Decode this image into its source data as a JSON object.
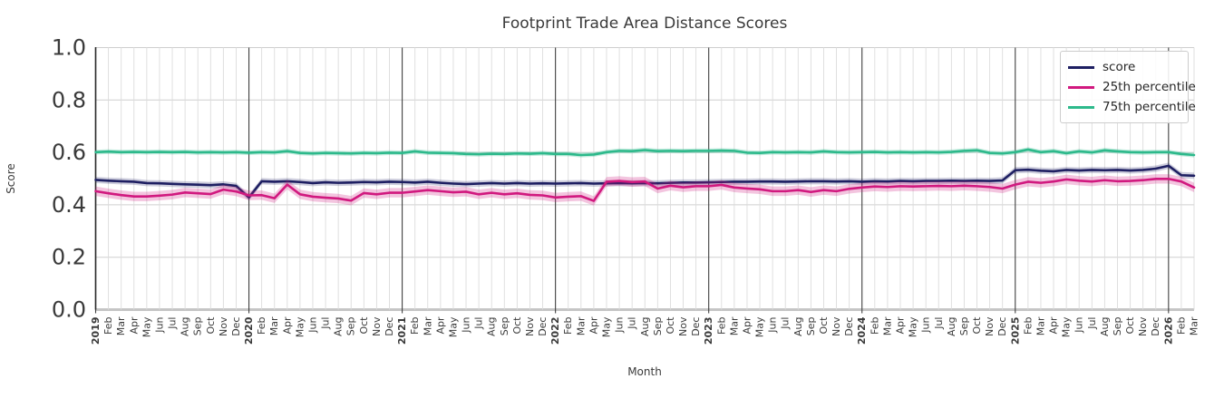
{
  "chart_data": {
    "type": "line",
    "title": "Footprint Trade Area Distance Scores",
    "xlabel": "Month",
    "ylabel": "Score",
    "ylim": [
      0.0,
      1.0
    ],
    "yticks": [
      0.0,
      0.2,
      0.4,
      0.6,
      0.8,
      1.0
    ],
    "grid": true,
    "legend_position": "upper right",
    "categories": [
      "2019",
      "Feb",
      "Mar",
      "Apr",
      "May",
      "Jun",
      "Jul",
      "Aug",
      "Sep",
      "Oct",
      "Nov",
      "Dec",
      "2020",
      "Feb",
      "Mar",
      "Apr",
      "May",
      "Jun",
      "Jul",
      "Aug",
      "Sep",
      "Oct",
      "Nov",
      "Dec",
      "2021",
      "Feb",
      "Mar",
      "Apr",
      "May",
      "Jun",
      "Jul",
      "Aug",
      "Sep",
      "Oct",
      "Nov",
      "Dec",
      "2022",
      "Feb",
      "Mar",
      "Apr",
      "May",
      "Jun",
      "Jul",
      "Aug",
      "Sep",
      "Oct",
      "Nov",
      "Dec",
      "2023",
      "Feb",
      "Mar",
      "Apr",
      "May",
      "Jun",
      "Jul",
      "Aug",
      "Sep",
      "Oct",
      "Nov",
      "Dec",
      "2024",
      "Feb",
      "Mar",
      "Apr",
      "May",
      "Jun",
      "Jul",
      "Aug",
      "Sep",
      "Oct",
      "Nov",
      "Dec",
      "2025",
      "Feb",
      "Mar",
      "Apr",
      "May",
      "Jun",
      "Jul",
      "Aug",
      "Sep",
      "Oct",
      "Nov",
      "Dec",
      "2026",
      "Feb",
      "Mar"
    ],
    "series": [
      {
        "name": "score",
        "color": "#1e1f62",
        "band_halfwidth": 0.012,
        "band_opacity": 0.22,
        "values": [
          0.495,
          0.492,
          0.49,
          0.488,
          0.483,
          0.482,
          0.48,
          0.478,
          0.477,
          0.475,
          0.478,
          0.472,
          0.428,
          0.49,
          0.488,
          0.49,
          0.487,
          0.483,
          0.486,
          0.484,
          0.485,
          0.487,
          0.486,
          0.488,
          0.487,
          0.485,
          0.488,
          0.484,
          0.481,
          0.479,
          0.481,
          0.483,
          0.481,
          0.483,
          0.481,
          0.482,
          0.481,
          0.482,
          0.483,
          0.481,
          0.482,
          0.483,
          0.482,
          0.483,
          0.482,
          0.484,
          0.485,
          0.485,
          0.486,
          0.487,
          0.488,
          0.488,
          0.489,
          0.489,
          0.488,
          0.489,
          0.49,
          0.49,
          0.489,
          0.49,
          0.488,
          0.49,
          0.489,
          0.491,
          0.49,
          0.491,
          0.491,
          0.492,
          0.491,
          0.492,
          0.491,
          0.493,
          0.532,
          0.534,
          0.53,
          0.528,
          0.533,
          0.531,
          0.533,
          0.532,
          0.533,
          0.531,
          0.533,
          0.538,
          0.549,
          0.513,
          0.511
        ]
      },
      {
        "name": "25th percentile",
        "color": "#d1197f",
        "band_halfwidth": 0.018,
        "band_opacity": 0.25,
        "values": [
          0.452,
          0.444,
          0.437,
          0.432,
          0.432,
          0.435,
          0.439,
          0.447,
          0.444,
          0.441,
          0.458,
          0.451,
          0.436,
          0.437,
          0.425,
          0.477,
          0.44,
          0.431,
          0.427,
          0.424,
          0.416,
          0.445,
          0.44,
          0.446,
          0.446,
          0.451,
          0.456,
          0.452,
          0.448,
          0.45,
          0.44,
          0.446,
          0.44,
          0.444,
          0.438,
          0.436,
          0.428,
          0.431,
          0.433,
          0.415,
          0.488,
          0.491,
          0.487,
          0.489,
          0.462,
          0.473,
          0.467,
          0.471,
          0.471,
          0.476,
          0.466,
          0.462,
          0.459,
          0.452,
          0.452,
          0.456,
          0.449,
          0.456,
          0.452,
          0.461,
          0.466,
          0.47,
          0.468,
          0.471,
          0.47,
          0.471,
          0.472,
          0.471,
          0.473,
          0.471,
          0.468,
          0.462,
          0.477,
          0.488,
          0.484,
          0.489,
          0.497,
          0.492,
          0.489,
          0.494,
          0.49,
          0.491,
          0.494,
          0.499,
          0.499,
          0.489,
          0.466
        ]
      },
      {
        "name": "75th percentile",
        "color": "#2db98b",
        "band_halfwidth": 0.009,
        "band_opacity": 0.28,
        "values": [
          0.601,
          0.603,
          0.601,
          0.602,
          0.601,
          0.602,
          0.601,
          0.602,
          0.6,
          0.601,
          0.6,
          0.601,
          0.599,
          0.601,
          0.6,
          0.605,
          0.598,
          0.596,
          0.598,
          0.597,
          0.596,
          0.598,
          0.597,
          0.599,
          0.598,
          0.604,
          0.599,
          0.598,
          0.597,
          0.594,
          0.593,
          0.595,
          0.594,
          0.596,
          0.595,
          0.597,
          0.594,
          0.594,
          0.59,
          0.592,
          0.601,
          0.606,
          0.605,
          0.609,
          0.605,
          0.606,
          0.605,
          0.606,
          0.606,
          0.607,
          0.606,
          0.599,
          0.598,
          0.601,
          0.6,
          0.601,
          0.6,
          0.604,
          0.601,
          0.6,
          0.601,
          0.602,
          0.6,
          0.601,
          0.6,
          0.601,
          0.6,
          0.602,
          0.606,
          0.608,
          0.598,
          0.596,
          0.601,
          0.611,
          0.601,
          0.605,
          0.597,
          0.604,
          0.6,
          0.608,
          0.604,
          0.601,
          0.6,
          0.601,
          0.601,
          0.594,
          0.59
        ]
      }
    ]
  }
}
